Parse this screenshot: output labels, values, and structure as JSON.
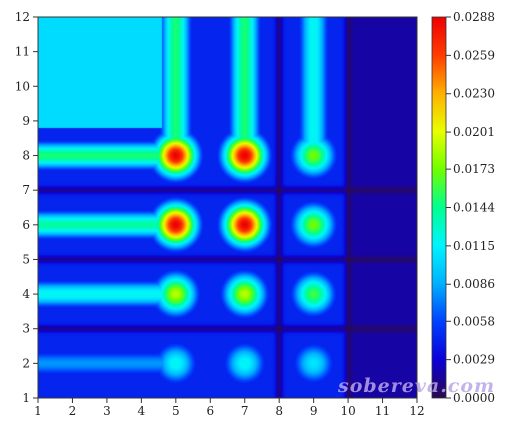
{
  "chart_data": {
    "type": "heatmap",
    "title": "",
    "xlabel": "",
    "ylabel": "",
    "xlim": [
      1,
      12
    ],
    "ylim": [
      1,
      12
    ],
    "x_ticks": [
      "1",
      "2",
      "3",
      "4",
      "5",
      "6",
      "7",
      "8",
      "9",
      "10",
      "11",
      "12"
    ],
    "y_ticks": [
      "1",
      "2",
      "3",
      "4",
      "5",
      "6",
      "7",
      "8",
      "9",
      "10",
      "11",
      "12"
    ],
    "colorbar": {
      "min": 0.0,
      "max": 0.0288,
      "tick_values": [
        0.0288,
        0.0259,
        0.023,
        0.0201,
        0.0173,
        0.0144,
        0.0115,
        0.0086,
        0.0058,
        0.0029,
        0.0
      ],
      "tick_labels": [
        "0.0288",
        "0.0259",
        "0.0230",
        "0.0201",
        "0.0173",
        "0.0144",
        "0.0115",
        "0.0086",
        "0.0058",
        "0.0029",
        "0.0000"
      ],
      "colormap": [
        "#2a0a50",
        "#0b00d8",
        "#0040ff",
        "#00b0ff",
        "#00f4ff",
        "#00ff90",
        "#70ff00",
        "#e8ff00",
        "#ffb000",
        "#ff3c00",
        "#ee0000"
      ]
    },
    "peaks": [
      {
        "x": 5,
        "y": 8,
        "value": 0.0288
      },
      {
        "x": 7,
        "y": 8,
        "value": 0.0288
      },
      {
        "x": 5,
        "y": 6,
        "value": 0.0288
      },
      {
        "x": 7,
        "y": 6,
        "value": 0.0288
      },
      {
        "x": 9,
        "y": 8,
        "value": 0.0173
      },
      {
        "x": 9,
        "y": 6,
        "value": 0.0173
      },
      {
        "x": 5,
        "y": 4,
        "value": 0.019
      },
      {
        "x": 7,
        "y": 4,
        "value": 0.019
      },
      {
        "x": 9,
        "y": 4,
        "value": 0.016
      },
      {
        "x": 5,
        "y": 2,
        "value": 0.012
      },
      {
        "x": 7,
        "y": 2,
        "value": 0.012
      },
      {
        "x": 9,
        "y": 2,
        "value": 0.011
      }
    ],
    "grid": false,
    "legend": "colorbar-right"
  },
  "watermark": "sobereva.com"
}
